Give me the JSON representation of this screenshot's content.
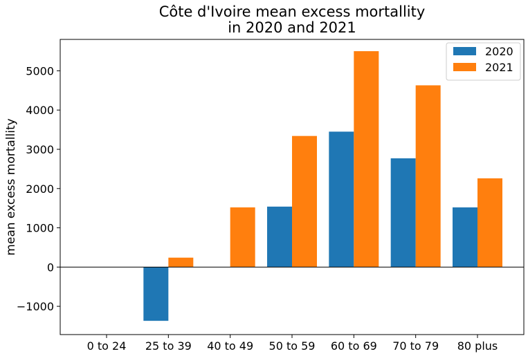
{
  "chart_data": {
    "type": "bar",
    "title_lines": [
      "Côte d'Ivoire mean excess mortallity",
      "in 2020 and 2021"
    ],
    "xlabel": "",
    "ylabel": "mean excess mortallity",
    "categories": [
      "0 to 24",
      "25 to 39",
      "40 to 49",
      "50 to 59",
      "60 to 69",
      "70 to 79",
      "80 plus"
    ],
    "series": [
      {
        "name": "2020",
        "color": "#1f77b4",
        "values": [
          0,
          -1370,
          0,
          1540,
          3450,
          2770,
          1520
        ]
      },
      {
        "name": "2021",
        "color": "#ff7f0e",
        "values": [
          0,
          240,
          1520,
          3340,
          5500,
          4630,
          2260
        ]
      }
    ],
    "ylim": [
      -1720,
      5800
    ],
    "yticks": [
      -1000,
      0,
      1000,
      2000,
      3000,
      4000,
      5000
    ],
    "ytick_labels": [
      "−1000",
      "0",
      "1000",
      "2000",
      "3000",
      "4000",
      "5000"
    ],
    "zero_line": true,
    "grid": false,
    "legend_position": "top-right"
  }
}
